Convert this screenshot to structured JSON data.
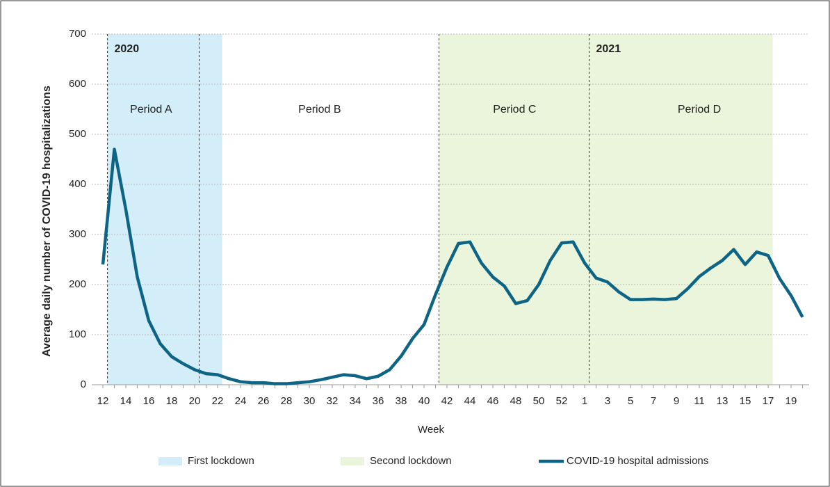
{
  "chart_data": {
    "type": "line",
    "x_label": "Week",
    "y_label": "Average daily number of COVID-19 hospitalizations",
    "categories": [
      12,
      null,
      14,
      null,
      16,
      null,
      18,
      null,
      20,
      null,
      22,
      null,
      24,
      null,
      26,
      null,
      28,
      null,
      30,
      null,
      32,
      null,
      34,
      null,
      36,
      null,
      38,
      null,
      40,
      null,
      42,
      null,
      44,
      null,
      46,
      null,
      48,
      null,
      50,
      null,
      52,
      null,
      1,
      null,
      3,
      null,
      5,
      null,
      7,
      null,
      9,
      null,
      11,
      null,
      13,
      null,
      15,
      null,
      17,
      null,
      19,
      null
    ],
    "series": [
      {
        "name": "COVID-19 hospital admissions",
        "color": "#0e6484",
        "values": [
          240,
          470,
          350,
          215,
          128,
          82,
          56,
          42,
          30,
          22,
          20,
          12,
          6,
          4,
          4,
          2,
          2,
          4,
          6,
          10,
          15,
          20,
          18,
          12,
          17,
          30,
          57,
          92,
          120,
          180,
          235,
          282,
          285,
          243,
          215,
          197,
          162,
          168,
          200,
          248,
          283,
          285,
          243,
          213,
          205,
          185,
          170,
          170,
          171,
          170,
          172,
          192,
          216,
          233,
          248,
          270,
          240,
          265,
          258,
          212,
          178,
          135
        ]
      }
    ],
    "regions": [
      {
        "name": "First lockdown",
        "color": "#d4eef9",
        "from": 0.4,
        "to": 10.4
      },
      {
        "name": "Second lockdown",
        "color": "#eaf5dc",
        "from": 29.3,
        "to": 58.4
      }
    ],
    "divider_lines": [
      0.4,
      8.4,
      29.3,
      42.4
    ],
    "annotations": [
      {
        "text": "2020",
        "at": 1
      },
      {
        "text": "2021",
        "at": 43
      },
      {
        "text": "Period A",
        "at": 4.2
      },
      {
        "text": "Period B",
        "at": 18.9
      },
      {
        "text": "Period C",
        "at": 35.9
      },
      {
        "text": "Period D",
        "at": 52
      }
    ],
    "ylim": [
      0,
      700
    ],
    "yticks": [
      0,
      100,
      200,
      300,
      400,
      500,
      600,
      700
    ],
    "grid": true
  }
}
